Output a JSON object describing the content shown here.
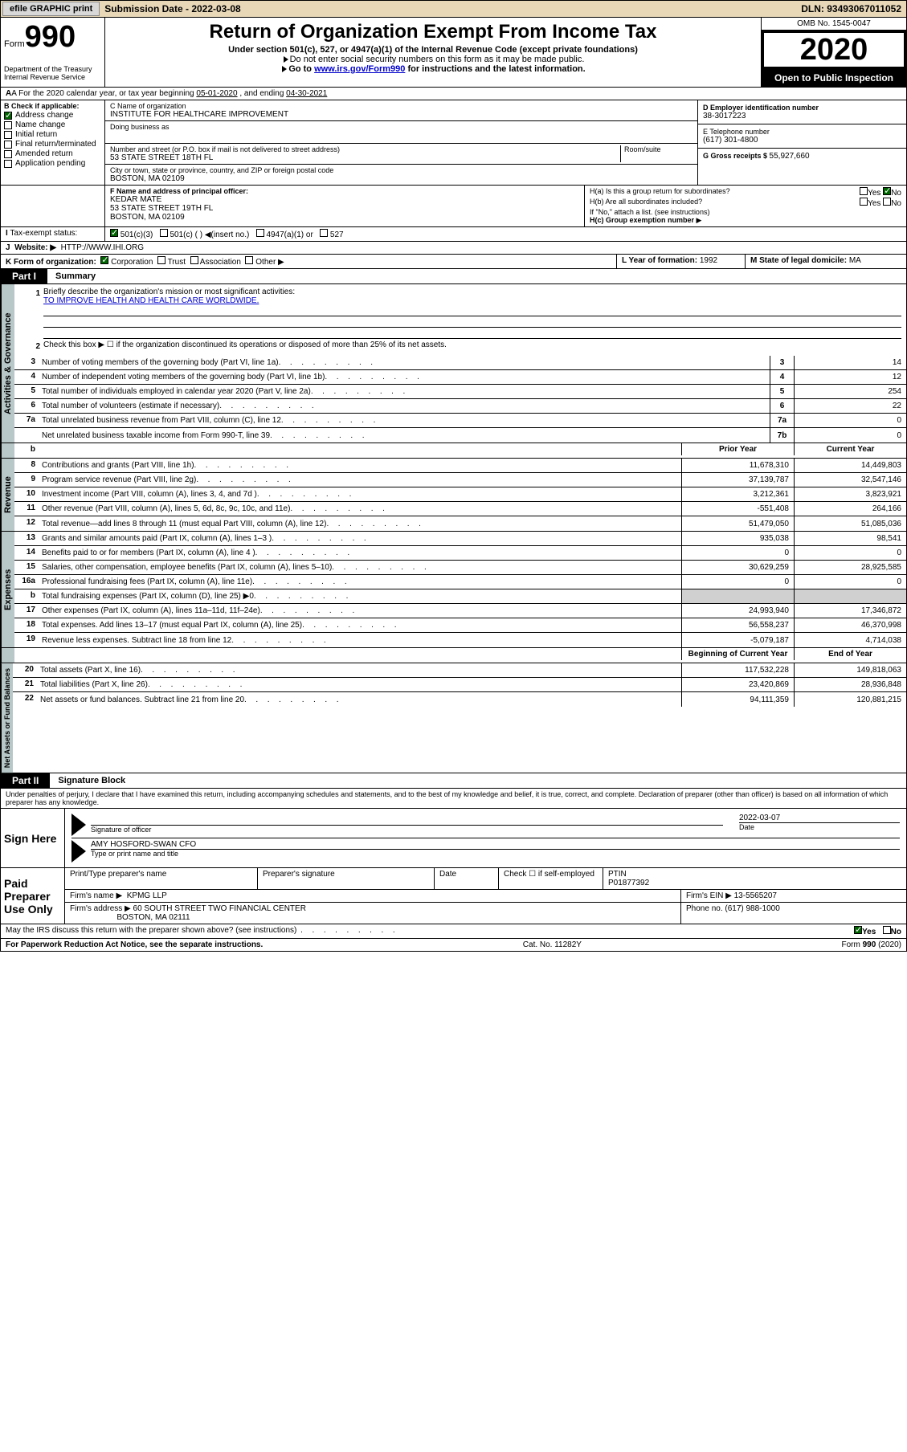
{
  "colors": {
    "topbar_bg": "#e8d8b8",
    "vert_label_bg": "#b8c8c8",
    "link": "#0000cc",
    "check_green": "#006600",
    "shaded": "#d0d0d0"
  },
  "topbar": {
    "efile_btn": "efile GRAPHIC print",
    "sub_label": "Submission Date - 2022-03-08",
    "dln_label": "DLN: 93493067011052"
  },
  "header": {
    "form_word": "Form",
    "form_num": "990",
    "title": "Return of Organization Exempt From Income Tax",
    "subtitle": "Under section 501(c), 527, or 4947(a)(1) of the Internal Revenue Code (except private foundations)",
    "sub2": "Do not enter social security numbers on this form as it may be made public.",
    "sub3_pre": "Go to ",
    "sub3_link": "www.irs.gov/Form990",
    "sub3_post": " for instructions and the latest information.",
    "omb": "OMB No. 1545-0047",
    "year": "2020",
    "open_public": "Open to Public Inspection",
    "dept": "Department of the Treasury",
    "irs": "Internal Revenue Service"
  },
  "rowA": {
    "label": "A For the 2020 calendar year, or tax year beginning ",
    "begin": "05-01-2020",
    "mid": " , and ending ",
    "end": "04-30-2021"
  },
  "boxB": {
    "label": "B Check if applicable:",
    "items": [
      {
        "label": "Address change",
        "checked": true
      },
      {
        "label": "Name change",
        "checked": false
      },
      {
        "label": "Initial return",
        "checked": false
      },
      {
        "label": "Final return/terminated",
        "checked": false
      },
      {
        "label": "Amended return",
        "checked": false
      },
      {
        "label": "Application pending",
        "checked": false
      }
    ]
  },
  "boxC": {
    "name_label": "C Name of organization",
    "name": "INSTITUTE FOR HEALTHCARE IMPROVEMENT",
    "dba_label": "Doing business as",
    "addr_label": "Number and street (or P.O. box if mail is not delivered to street address)",
    "room_label": "Room/suite",
    "addr": "53 STATE STREET 18TH FL",
    "city_label": "City or town, state or province, country, and ZIP or foreign postal code",
    "city": "BOSTON, MA  02109"
  },
  "boxD": {
    "label": "D Employer identification number",
    "value": "38-3017223"
  },
  "boxE": {
    "label": "E Telephone number",
    "value": "(617) 301-4800"
  },
  "boxG": {
    "label": "G Gross receipts $ ",
    "value": "55,927,660"
  },
  "boxF": {
    "label": "F  Name and address of principal officer:",
    "name": "KEDAR MATE",
    "addr": "53 STATE STREET 19TH FL",
    "city": "BOSTON, MA  02109"
  },
  "boxH": {
    "ha_label": "H(a)  Is this a group return for subordinates?",
    "ha_yes": "Yes",
    "ha_no": "No",
    "hb_label": "H(b)  Are all subordinates included?",
    "hb_yes": "Yes",
    "hb_no": "No",
    "hb_note": "If \"No,\" attach a list. (see instructions)",
    "hc_label": "H(c)  Group exemption number ",
    "hc_arrow": "▶"
  },
  "taxExempt": {
    "label": "Tax-exempt status:",
    "opts": [
      "501(c)(3)",
      "501(c) (  ) ◀(insert no.)",
      "4947(a)(1) or",
      "527"
    ],
    "checked_index": 0
  },
  "boxJ": {
    "label": "Website: ▶",
    "value": "HTTP://WWW.IHI.ORG"
  },
  "boxK": {
    "label": "K Form of organization:",
    "opts": [
      "Corporation",
      "Trust",
      "Association",
      "Other ▶"
    ],
    "checked_index": 0
  },
  "boxL": {
    "label": "L Year of formation: ",
    "value": "1992"
  },
  "boxM": {
    "label": "M State of legal domicile: ",
    "value": "MA"
  },
  "partI": {
    "tab": "Part I",
    "title": "Summary",
    "q1_label": "Briefly describe the organization's mission or most significant activities:",
    "q1_text": "TO IMPROVE HEALTH AND HEALTH CARE WORLDWIDE.",
    "q2_label": "Check this box ▶ ☐  if the organization discontinued its operations or disposed of more than 25% of its net assets.",
    "activities_lines": [
      {
        "num": "3",
        "text": "Number of voting members of the governing body (Part VI, line 1a)",
        "box": "3",
        "val": "14"
      },
      {
        "num": "4",
        "text": "Number of independent voting members of the governing body (Part VI, line 1b)",
        "box": "4",
        "val": "12"
      },
      {
        "num": "5",
        "text": "Total number of individuals employed in calendar year 2020 (Part V, line 2a)",
        "box": "5",
        "val": "254"
      },
      {
        "num": "6",
        "text": "Total number of volunteers (estimate if necessary)",
        "box": "6",
        "val": "22"
      },
      {
        "num": "7a",
        "text": "Total unrelated business revenue from Part VIII, column (C), line 12",
        "box": "7a",
        "val": "0"
      },
      {
        "num": "",
        "text": "Net unrelated business taxable income from Form 990-T, line 39",
        "box": "7b",
        "val": "0"
      }
    ],
    "b_label": "b",
    "col_prior": "Prior Year",
    "col_current": "Current Year",
    "revenue_lines": [
      {
        "num": "8",
        "text": "Contributions and grants (Part VIII, line 1h)",
        "prior": "11,678,310",
        "curr": "14,449,803"
      },
      {
        "num": "9",
        "text": "Program service revenue (Part VIII, line 2g)",
        "prior": "37,139,787",
        "curr": "32,547,146"
      },
      {
        "num": "10",
        "text": "Investment income (Part VIII, column (A), lines 3, 4, and 7d )",
        "prior": "3,212,361",
        "curr": "3,823,921"
      },
      {
        "num": "11",
        "text": "Other revenue (Part VIII, column (A), lines 5, 6d, 8c, 9c, 10c, and 11e)",
        "prior": "-551,408",
        "curr": "264,166"
      },
      {
        "num": "12",
        "text": "Total revenue—add lines 8 through 11 (must equal Part VIII, column (A), line 12)",
        "prior": "51,479,050",
        "curr": "51,085,036"
      }
    ],
    "expense_lines": [
      {
        "num": "13",
        "text": "Grants and similar amounts paid (Part IX, column (A), lines 1–3 )",
        "prior": "935,038",
        "curr": "98,541"
      },
      {
        "num": "14",
        "text": "Benefits paid to or for members (Part IX, column (A), line 4 )",
        "prior": "0",
        "curr": "0"
      },
      {
        "num": "15",
        "text": "Salaries, other compensation, employee benefits (Part IX, column (A), lines 5–10)",
        "prior": "30,629,259",
        "curr": "28,925,585"
      },
      {
        "num": "16a",
        "text": "Professional fundraising fees (Part IX, column (A), line 11e)",
        "prior": "0",
        "curr": "0"
      },
      {
        "num": "b",
        "text": "Total fundraising expenses (Part IX, column (D), line 25) ▶0",
        "prior": "",
        "curr": "",
        "shaded": true
      },
      {
        "num": "17",
        "text": "Other expenses (Part IX, column (A), lines 11a–11d, 11f–24e)",
        "prior": "24,993,940",
        "curr": "17,346,872"
      },
      {
        "num": "18",
        "text": "Total expenses. Add lines 13–17 (must equal Part IX, column (A), line 25)",
        "prior": "56,558,237",
        "curr": "46,370,998"
      },
      {
        "num": "19",
        "text": "Revenue less expenses. Subtract line 18 from line 12",
        "prior": "-5,079,187",
        "curr": "4,714,038"
      }
    ],
    "col_begin": "Beginning of Current Year",
    "col_end": "End of Year",
    "netassets_lines": [
      {
        "num": "20",
        "text": "Total assets (Part X, line 16)",
        "prior": "117,532,228",
        "curr": "149,818,063"
      },
      {
        "num": "21",
        "text": "Total liabilities (Part X, line 26)",
        "prior": "23,420,869",
        "curr": "28,936,848"
      },
      {
        "num": "22",
        "text": "Net assets or fund balances. Subtract line 21 from line 20",
        "prior": "94,111,359",
        "curr": "120,881,215"
      }
    ],
    "vert_activities": "Activities & Governance",
    "vert_revenue": "Revenue",
    "vert_expenses": "Expenses",
    "vert_netassets": "Net Assets or Fund Balances"
  },
  "partII": {
    "tab": "Part II",
    "title": "Signature Block",
    "declaration": "Under penalties of perjury, I declare that I have examined this return, including accompanying schedules and statements, and to the best of my knowledge and belief, it is true, correct, and complete. Declaration of preparer (other than officer) is based on all information of which preparer has any knowledge.",
    "sign_here": "Sign Here",
    "sig_officer_label": "Signature of officer",
    "date_label": "Date",
    "sig_date": "2022-03-07",
    "officer_name": "AMY HOSFORD-SWAN CFO",
    "type_label": "Type or print name and title",
    "paid_prep": "Paid Preparer Use Only",
    "prep_name_label": "Print/Type preparer's name",
    "prep_sig_label": "Preparer's signature",
    "prep_date_label": "Date",
    "check_if": "Check ☐ if self-employed",
    "ptin_label": "PTIN",
    "ptin": "P01877392",
    "firm_name_label": "Firm's name    ▶",
    "firm_name": "KPMG LLP",
    "firm_ein_label": "Firm's EIN ▶",
    "firm_ein": "13-5565207",
    "firm_addr_label": "Firm's address ▶",
    "firm_addr": "60 SOUTH STREET TWO FINANCIAL CENTER",
    "firm_city": "BOSTON, MA  02111",
    "phone_label": "Phone no. ",
    "phone": "(617) 988-1000",
    "discuss": "May the IRS discuss this return with the preparer shown above? (see instructions)",
    "discuss_yes": "Yes",
    "discuss_no": "No"
  },
  "footer": {
    "left": "For Paperwork Reduction Act Notice, see the separate instructions.",
    "mid": "Cat. No. 11282Y",
    "right": "Form 990 (2020)"
  }
}
